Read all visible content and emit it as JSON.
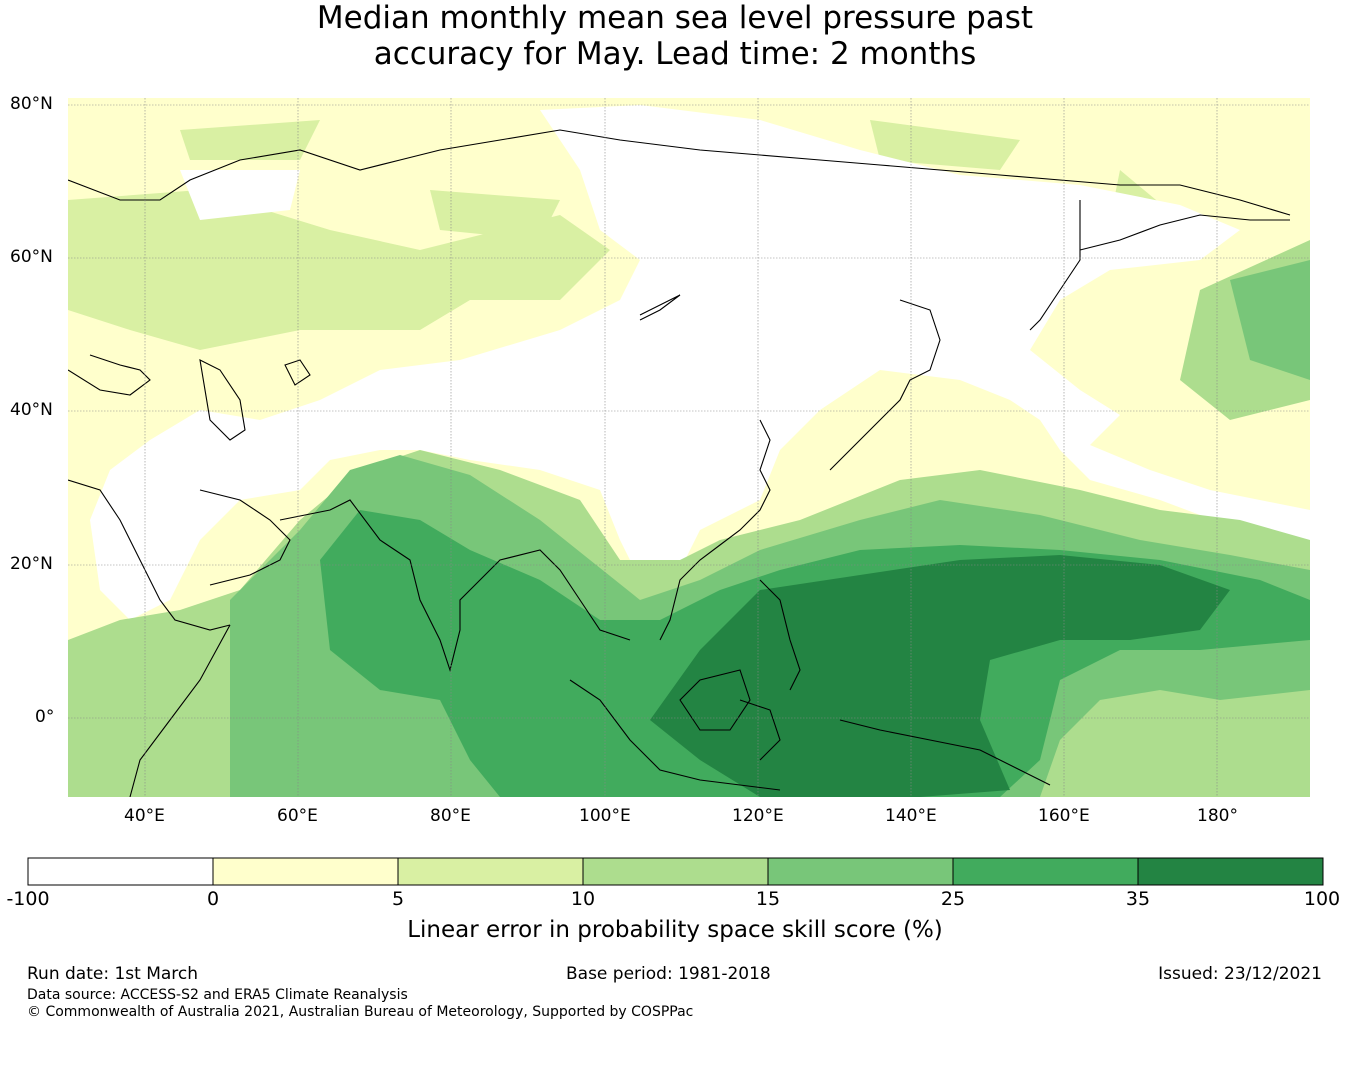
{
  "title": {
    "line1": "Median monthly mean sea level pressure past",
    "line2": "accuracy for May. Lead time: 2 months"
  },
  "map": {
    "lat_labels": [
      "80°N",
      "60°N",
      "40°N",
      "20°N",
      "0°"
    ],
    "lon_labels": [
      "40°E",
      "60°E",
      "80°E",
      "100°E",
      "120°E",
      "140°E",
      "160°E",
      "180°"
    ]
  },
  "colorbar": {
    "title": "Linear error in probability space skill score (%)",
    "ticks": [
      "-100",
      "0",
      "5",
      "10",
      "15",
      "25",
      "35",
      "100"
    ],
    "colors": [
      "#ffffff",
      "#ffffcc",
      "#d9f0a3",
      "#addd8e",
      "#78c679",
      "#41ab5d",
      "#238443"
    ]
  },
  "footer": {
    "run_date": "Run date: 1st March",
    "base_period": "Base period: 1981-2018",
    "issued": "Issued: 23/12/2021",
    "data_source": "Data source: ACCESS-S2 and ERA5 Climate Reanalysis",
    "copyright": "© Commonwealth of Australia 2021, Australian Bureau of Meteorology, Supported by COSPPac"
  }
}
